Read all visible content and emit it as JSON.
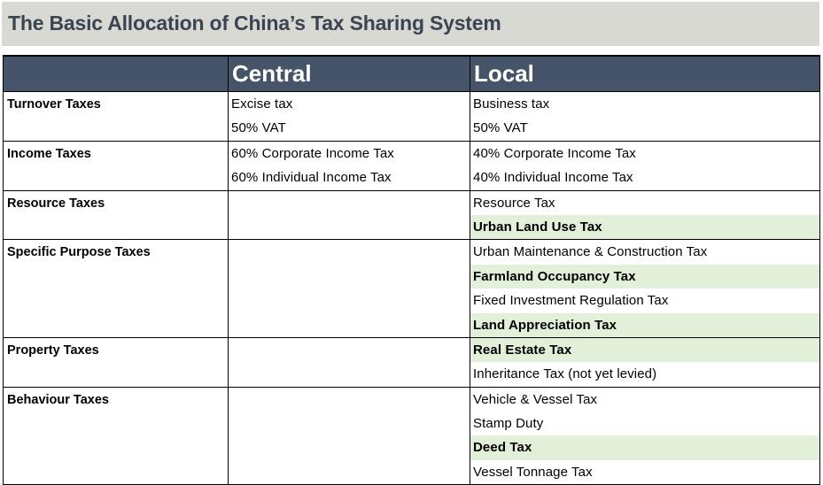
{
  "title": "The Basic Allocation of China’s Tax Sharing System",
  "headers": {
    "category": "",
    "central": "Central",
    "local": "Local"
  },
  "rows": [
    {
      "category": "Turnover Taxes",
      "central": [
        "Excise tax",
        "50% VAT"
      ],
      "local": [
        {
          "text": "Business tax",
          "highlight": false
        },
        {
          "text": "50% VAT",
          "highlight": false
        }
      ]
    },
    {
      "category": "Income Taxes",
      "central": [
        "60% Corporate Income Tax",
        "60% Individual Income Tax"
      ],
      "local": [
        {
          "text": "40% Corporate Income Tax",
          "highlight": false
        },
        {
          "text": "40% Individual Income Tax",
          "highlight": false
        }
      ]
    },
    {
      "category": "Resource Taxes",
      "central": [],
      "local": [
        {
          "text": "Resource Tax",
          "highlight": false
        },
        {
          "text": "Urban Land Use Tax",
          "highlight": true
        }
      ]
    },
    {
      "category": "Specific Purpose Taxes",
      "central": [],
      "local": [
        {
          "text": "Urban Maintenance & Construction Tax",
          "highlight": false
        },
        {
          "text": "Farmland Occupancy Tax",
          "highlight": true
        },
        {
          "text": "Fixed Investment Regulation Tax",
          "highlight": false
        },
        {
          "text": "Land Appreciation Tax",
          "highlight": true
        }
      ]
    },
    {
      "category": "Property Taxes",
      "central": [],
      "local": [
        {
          "text": "Real Estate Tax",
          "highlight": true
        },
        {
          "text": "Inheritance Tax (not yet levied)",
          "highlight": false
        }
      ]
    },
    {
      "category": "Behaviour Taxes",
      "central": [],
      "local": [
        {
          "text": "Vehicle & Vessel Tax",
          "highlight": false
        },
        {
          "text": "Stamp Duty",
          "highlight": false
        },
        {
          "text": "Deed Tax",
          "highlight": true
        },
        {
          "text": "Vessel Tonnage Tax",
          "highlight": false
        }
      ]
    }
  ],
  "colors": {
    "header_bg": "#455468",
    "title_bg": "#d9d9d3",
    "title_text": "#3b4452",
    "highlight": "#e2efd9"
  }
}
